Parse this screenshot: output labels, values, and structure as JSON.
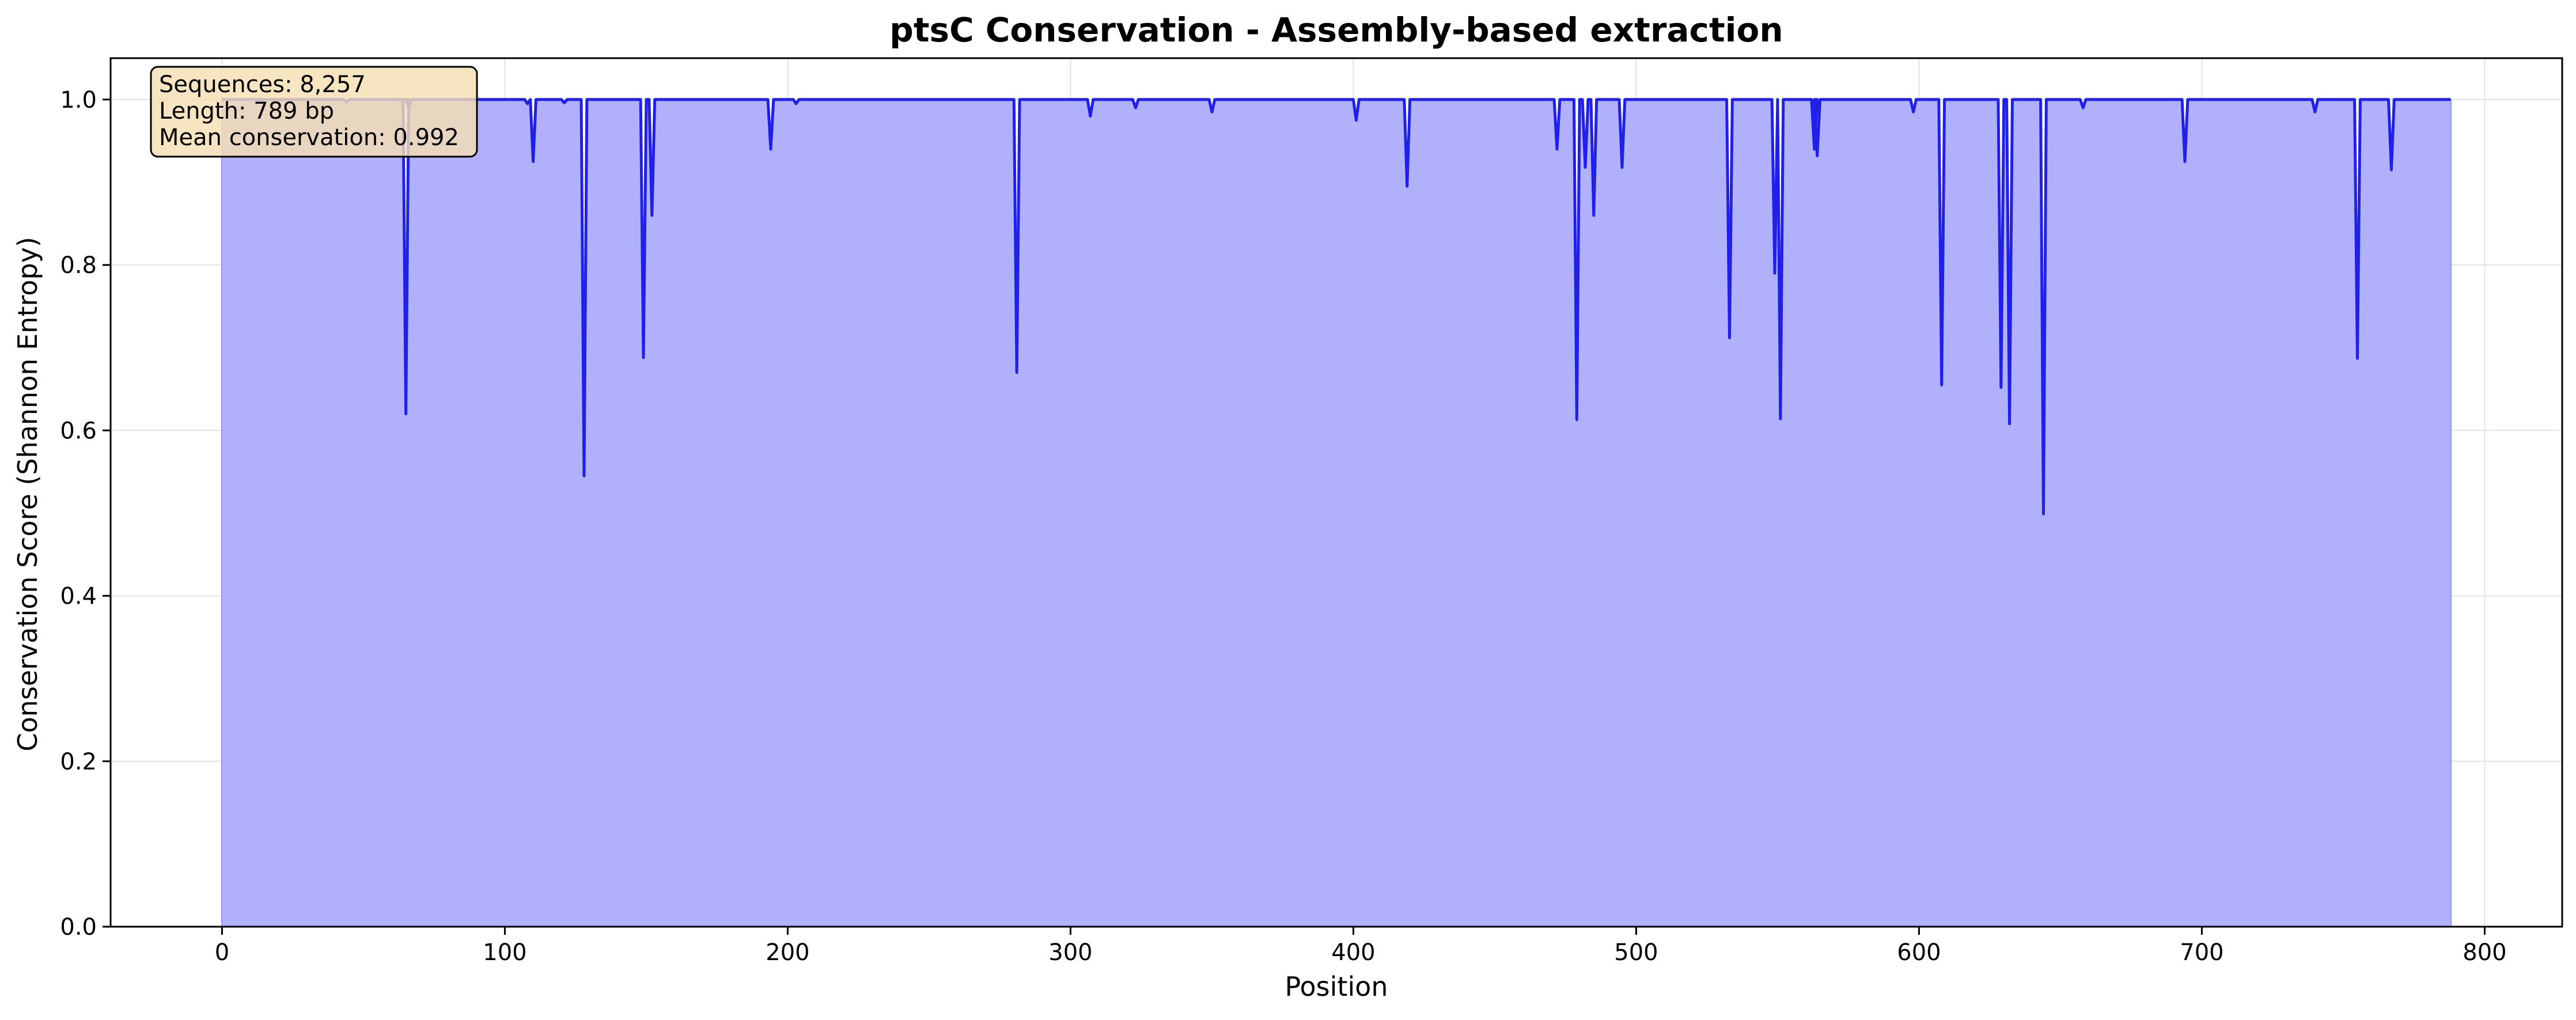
{
  "chart_data": {
    "type": "area",
    "title": "ptsC Conservation - Assembly-based extraction",
    "xlabel": "Position",
    "ylabel": "Conservation Score (Shannon Entropy)",
    "xlim": [
      -39.4,
      827.4
    ],
    "ylim": [
      0,
      1.05
    ],
    "xticks": [
      0,
      100,
      200,
      300,
      400,
      500,
      600,
      700,
      800
    ],
    "yticks": [
      0.0,
      0.2,
      0.4,
      0.6,
      0.8,
      1.0
    ],
    "xtick_labels": [
      "0",
      "100",
      "200",
      "300",
      "400",
      "500",
      "600",
      "700",
      "800"
    ],
    "ytick_labels": [
      "0.0",
      "0.2",
      "0.4",
      "0.6",
      "0.8",
      "1.0"
    ],
    "grid": true,
    "line_color": "#2020e8",
    "fill_color": "#b0b0fb",
    "series": [
      {
        "baseline": 1.0,
        "x_start": 0,
        "x_end": 788,
        "dips": [
          [
            44,
            0.997
          ],
          [
            65,
            0.62
          ],
          [
            66,
            0.99
          ],
          [
            108,
            0.995
          ],
          [
            110,
            0.925
          ],
          [
            121,
            0.996
          ],
          [
            128,
            0.545
          ],
          [
            149,
            0.688
          ],
          [
            152,
            0.86
          ],
          [
            194,
            0.94
          ],
          [
            203,
            0.995
          ],
          [
            281,
            0.67
          ],
          [
            307,
            0.98
          ],
          [
            323,
            0.99
          ],
          [
            350,
            0.985
          ],
          [
            401,
            0.975
          ],
          [
            419,
            0.895
          ],
          [
            472,
            0.94
          ],
          [
            479,
            0.613
          ],
          [
            482,
            0.918
          ],
          [
            485,
            0.86
          ],
          [
            495,
            0.918
          ],
          [
            533,
            0.712
          ],
          [
            549,
            0.79
          ],
          [
            551,
            0.614
          ],
          [
            563,
            0.94
          ],
          [
            564,
            0.932
          ],
          [
            598,
            0.985
          ],
          [
            608,
            0.655
          ],
          [
            629,
            0.652
          ],
          [
            632,
            0.608
          ],
          [
            644,
            0.499
          ],
          [
            658,
            0.99
          ],
          [
            694,
            0.925
          ],
          [
            740,
            0.985
          ],
          [
            755,
            0.687
          ],
          [
            767,
            0.915
          ]
        ]
      }
    ],
    "annotation": {
      "lines": [
        "Sequences: 8,257",
        "Length: 789 bp",
        "Mean conservation: 0.992"
      ],
      "placement": "top-left",
      "box_color": "#f5deb3"
    }
  }
}
